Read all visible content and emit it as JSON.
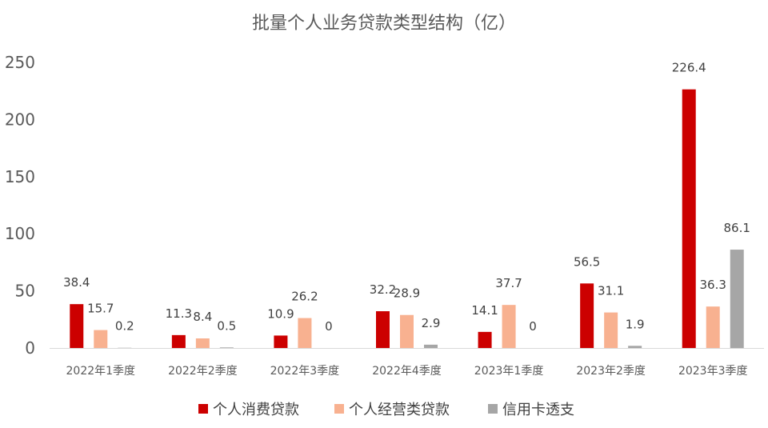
{
  "chart_data": {
    "type": "bar",
    "title": "批量个人业务贷款类型结构（亿）",
    "xlabel": "",
    "ylabel": "",
    "ylim": [
      0,
      250
    ],
    "yticks": [
      "0",
      "50",
      "100",
      "150",
      "200",
      "250"
    ],
    "grid": false,
    "legend_position": "bottom",
    "categories": [
      "2022年1季度",
      "2022年2季度",
      "2022年3季度",
      "2022年4季度",
      "2023年1季度",
      "2023年2季度",
      "2023年3季度"
    ],
    "series": [
      {
        "name": "个人消费贷款",
        "color": "#CC0000",
        "values": [
          38.4,
          11.3,
          10.9,
          32.2,
          14.1,
          56.5,
          226.4
        ],
        "labels": [
          "38.4",
          "11.3",
          "10.9",
          "32.2",
          "14.1",
          "56.5",
          "226.4"
        ]
      },
      {
        "name": "个人经营类贷款",
        "color": "#F8B190",
        "values": [
          15.7,
          8.4,
          26.2,
          28.9,
          37.7,
          31.1,
          36.3
        ],
        "labels": [
          "15.7",
          "8.4",
          "26.2",
          "28.9",
          "37.7",
          "31.1",
          "36.3"
        ]
      },
      {
        "name": "信用卡透支",
        "color": "#A6A6A6",
        "values": [
          0.2,
          0.5,
          0,
          2.9,
          0,
          1.9,
          86.1
        ],
        "labels": [
          "0.2",
          "0.5",
          "0",
          "2.9",
          "0",
          "1.9",
          "86.1"
        ]
      }
    ]
  }
}
